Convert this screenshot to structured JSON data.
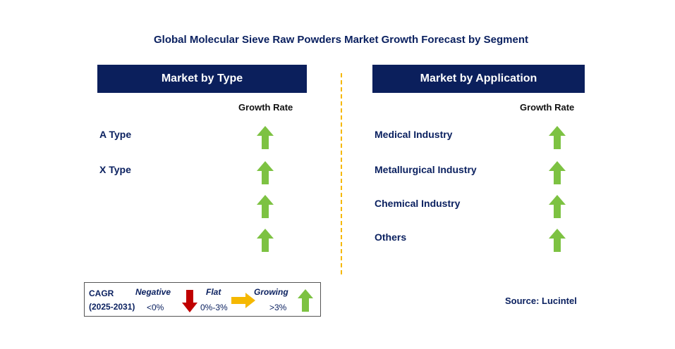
{
  "chart_data": {
    "type": "table",
    "title": "Global Molecular Sieve Raw Powders Market Growth Forecast by Segment",
    "panels": [
      {
        "header": "Market by Type",
        "growth_rate_label": "Growth Rate",
        "rows": [
          {
            "label": "A Type",
            "trend": "growing"
          },
          {
            "label": "X Type",
            "trend": "growing"
          },
          {
            "label": "",
            "trend": "growing"
          },
          {
            "label": "",
            "trend": "growing"
          }
        ]
      },
      {
        "header": "Market by Application",
        "growth_rate_label": "Growth Rate",
        "rows": [
          {
            "label": "Medical Industry",
            "trend": "growing"
          },
          {
            "label": "Metallurgical Industry",
            "trend": "growing"
          },
          {
            "label": "Chemical Industry",
            "trend": "growing"
          },
          {
            "label": "Others",
            "trend": "growing"
          }
        ]
      }
    ],
    "legend": {
      "cagr_label": "CAGR",
      "period": "(2025-2031)",
      "negative": {
        "label": "Negative",
        "range": "<0%"
      },
      "flat": {
        "label": "Flat",
        "range": "0%-3%"
      },
      "growing": {
        "label": "Growing",
        "range": ">3%"
      }
    },
    "source": "Source: Lucintel"
  },
  "colors": {
    "header_bg": "#0b1f5c",
    "text_navy": "#0b2160",
    "growing_arrow": "#7dc242",
    "negative_arrow": "#c00000",
    "flat_arrow": "#f5b800",
    "divider": "#f5b800"
  },
  "icons": {
    "growing": "arrow-up-icon",
    "negative": "arrow-down-icon",
    "flat": "arrow-right-icon"
  }
}
